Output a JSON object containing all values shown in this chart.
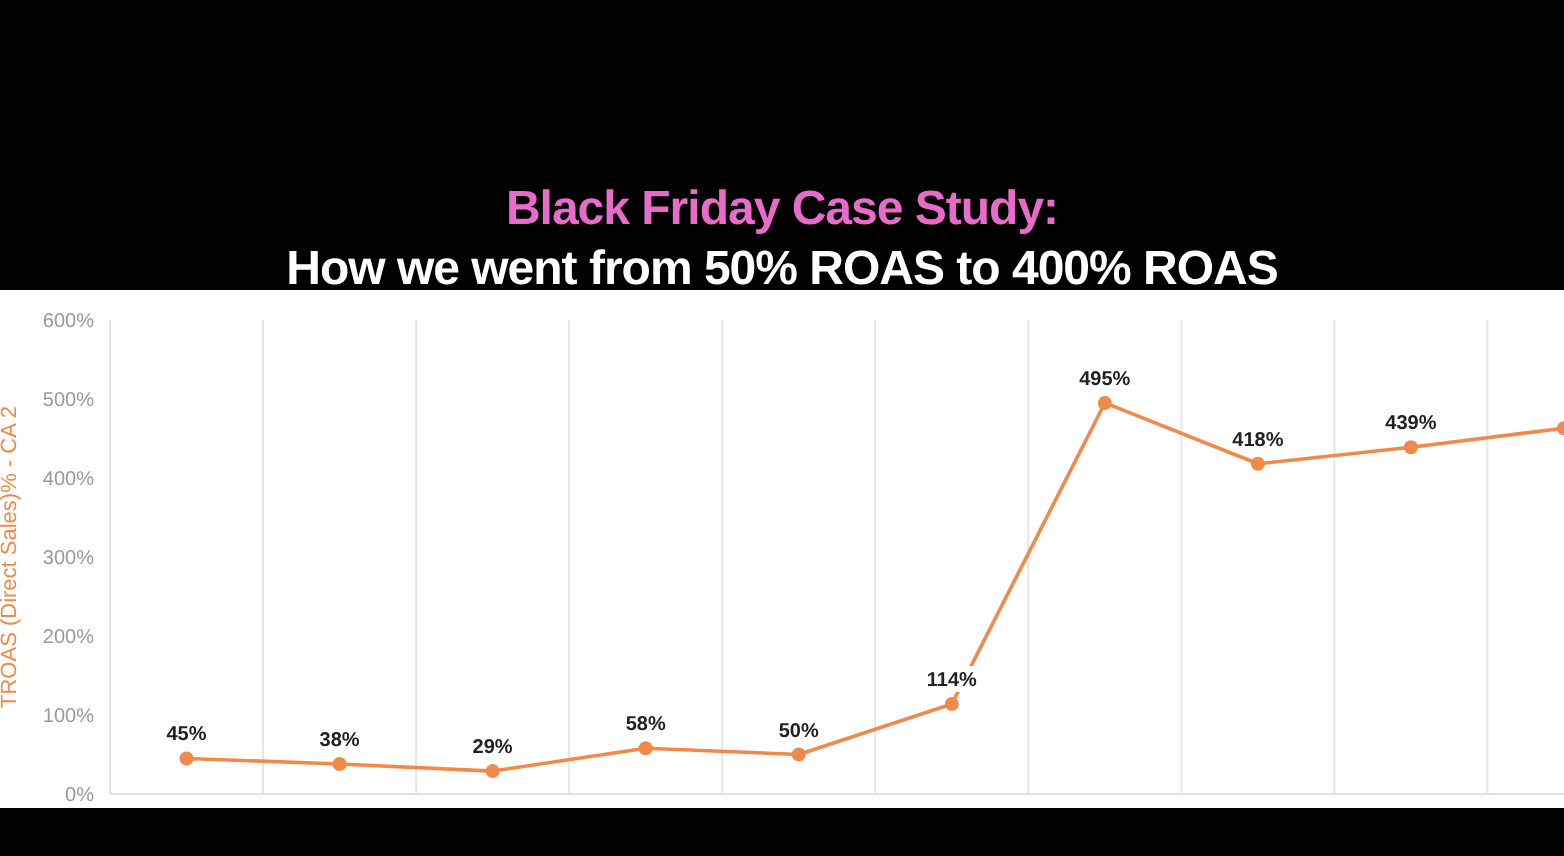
{
  "chart_data": {
    "type": "line",
    "title": "Black Friday Case Study:",
    "subtitle": "How we went from 50% ROAS to 400% ROAS",
    "ylabel": "TROAS (Direct Sales)% - CA 2",
    "categories": [
      null,
      null,
      null,
      null,
      null,
      null,
      null,
      null,
      null,
      null
    ],
    "series": [
      {
        "color": "#f08a4b",
        "values": [
          45,
          38,
          29,
          58,
          50,
          114,
          495,
          418,
          439,
          463
        ],
        "value_labels": [
          "45%",
          "38%",
          "29%",
          "58%",
          "50%",
          "114%",
          "495%",
          "418%",
          "439%",
          null
        ]
      }
    ],
    "ylim": [
      0,
      600
    ],
    "yticks": [
      {
        "value": 0,
        "label": "0%"
      },
      {
        "value": 100,
        "label": "100%"
      },
      {
        "value": 200,
        "label": "200%"
      },
      {
        "value": 300,
        "label": "300%"
      },
      {
        "value": 400,
        "label": "400%"
      },
      {
        "value": 500,
        "label": "500%"
      },
      {
        "value": 600,
        "label": "600%"
      }
    ],
    "grid": "x",
    "marker": "circle",
    "line_style": "solid",
    "tick_labels": "y"
  }
}
